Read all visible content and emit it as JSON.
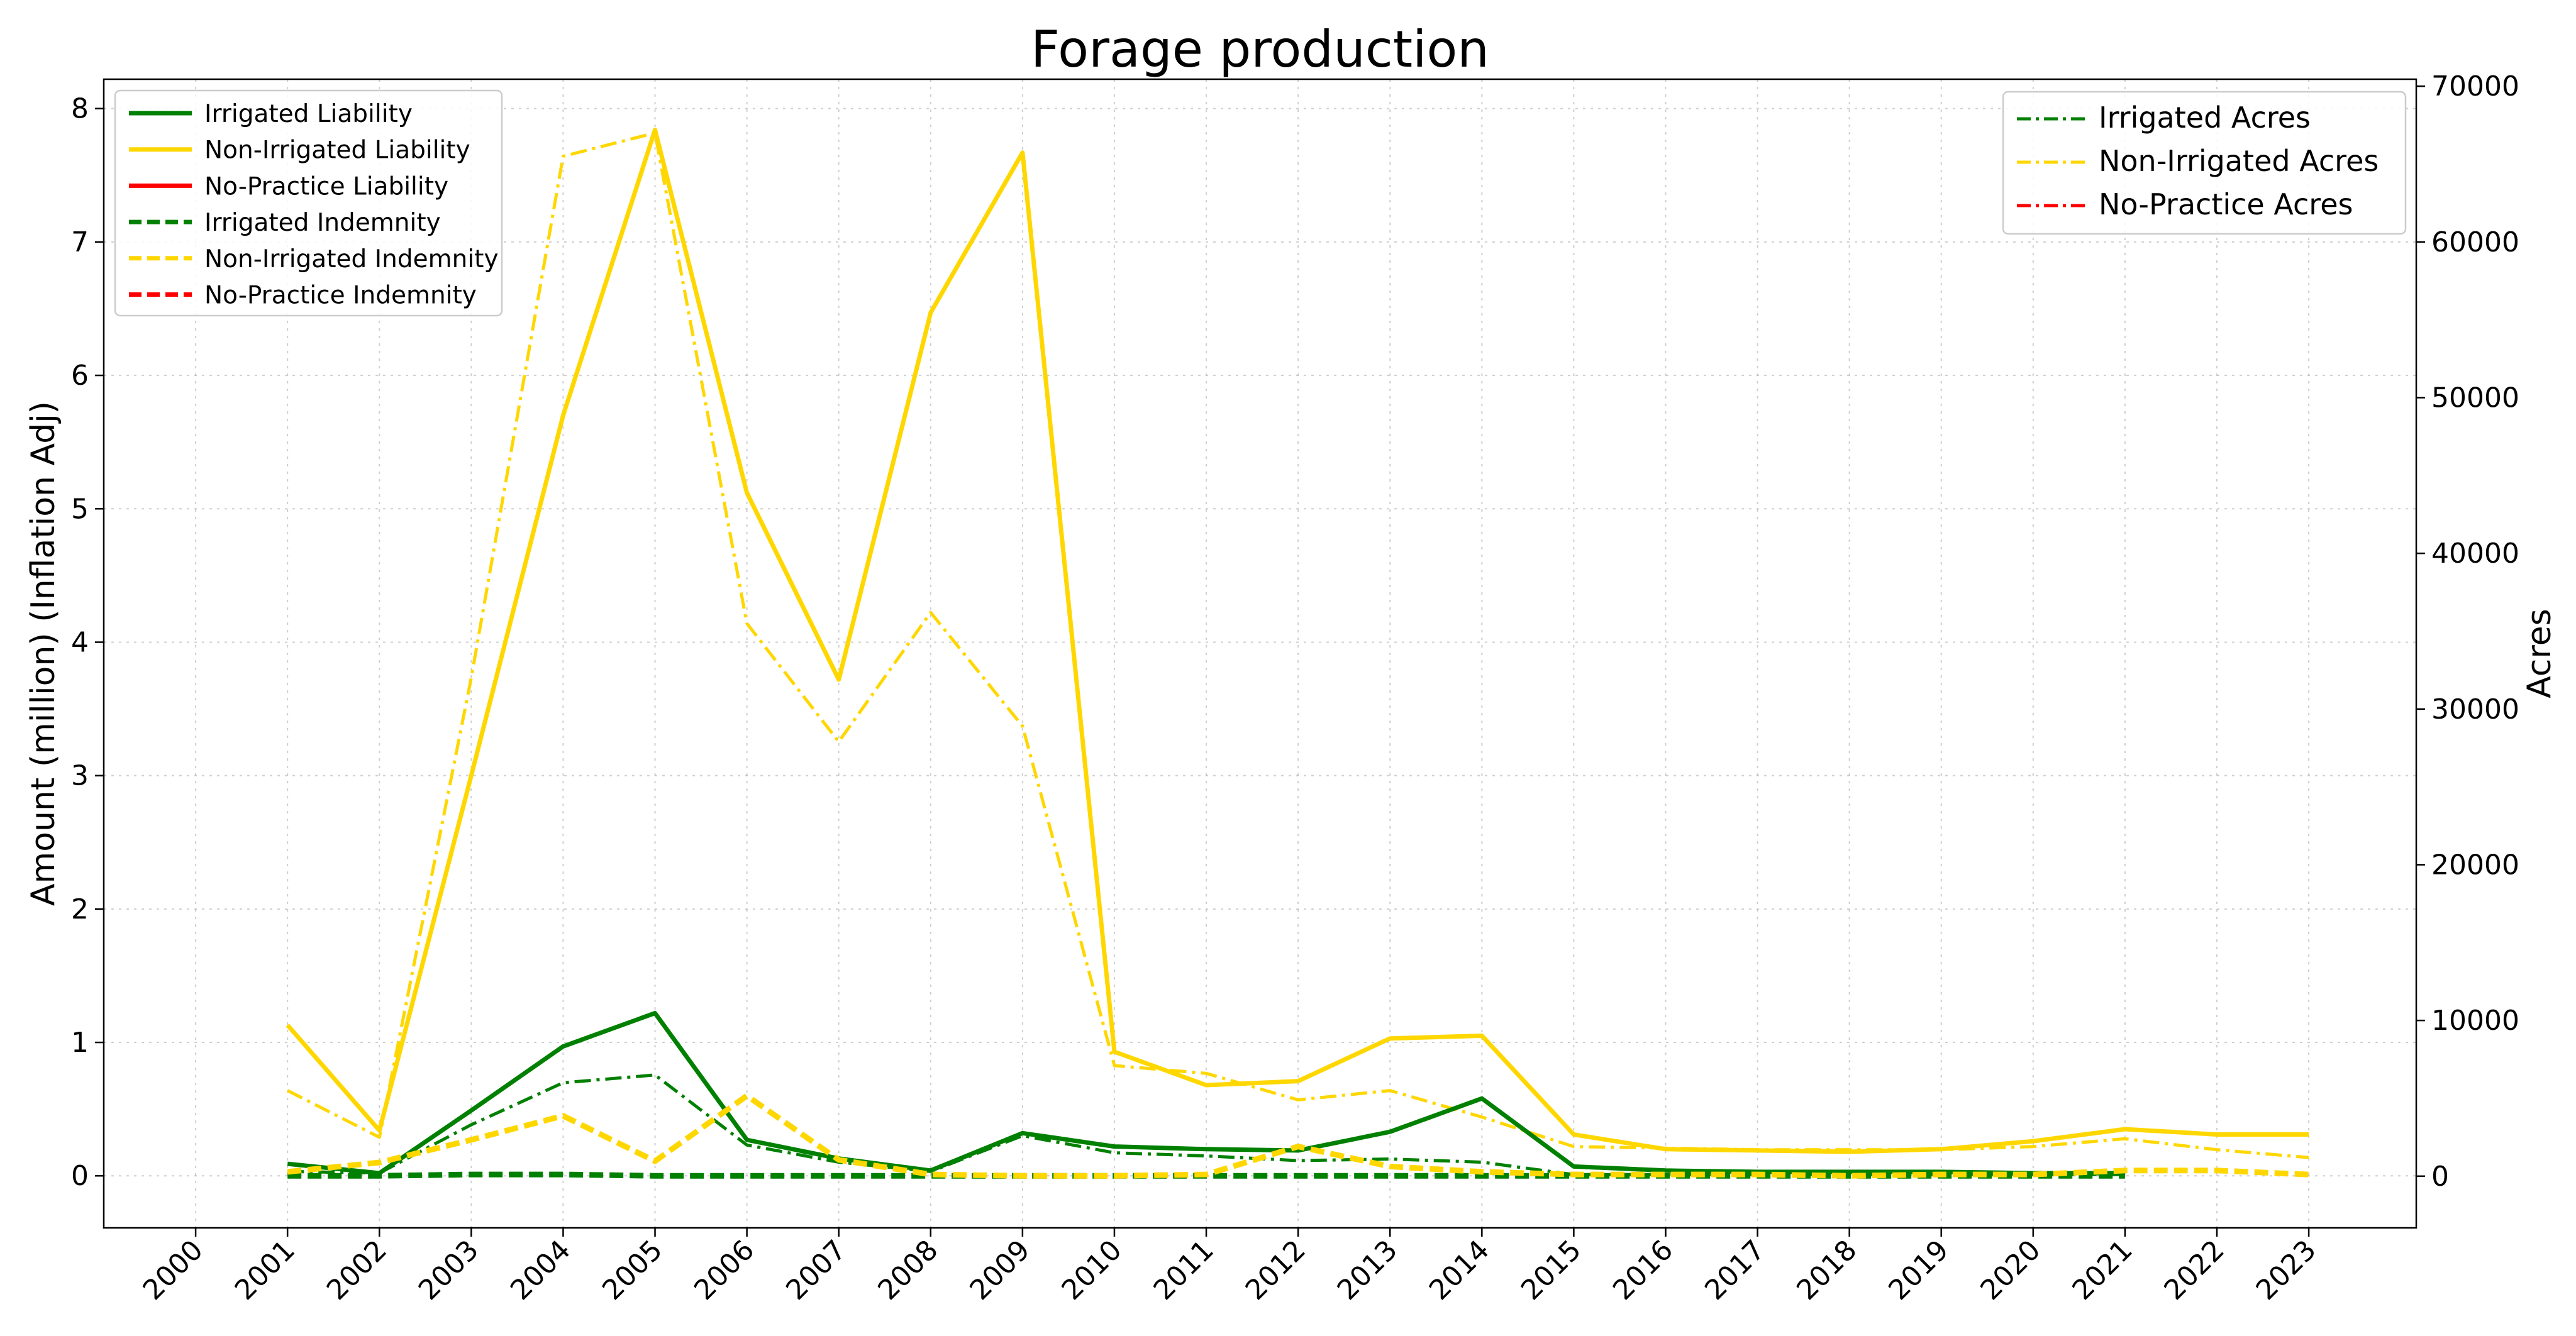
{
  "chart_data": {
    "type": "line",
    "title": "Forage production",
    "ylabel_left": "Amount (million) (Inflation Adj)",
    "ylabel_right": "Acres",
    "xlabel": "",
    "x_ticks": [
      "2000",
      "2001",
      "2002",
      "2003",
      "2004",
      "2005",
      "2006",
      "2007",
      "2008",
      "2009",
      "2010",
      "2011",
      "2012",
      "2013",
      "2014",
      "2015",
      "2016",
      "2017",
      "2018",
      "2019",
      "2020",
      "2021",
      "2022",
      "2023"
    ],
    "ylim_left": [
      -0.39,
      8.22
    ],
    "ylim_right": [
      -3320,
      70450
    ],
    "yticks_left": [
      0,
      1,
      2,
      3,
      4,
      5,
      6,
      7,
      8
    ],
    "yticks_right": [
      0,
      10000,
      20000,
      30000,
      40000,
      50000,
      60000,
      70000
    ],
    "grid": true,
    "legend_left_position": "upper-left",
    "legend_right_position": "upper-right",
    "colors": {
      "irrigated": "#008000",
      "non_irrigated": "#FFD700",
      "no_practice": "#FF0000"
    },
    "series_left": [
      {
        "name": "Irrigated Liability",
        "style": "solid",
        "color": "#008000",
        "x": [
          2001,
          2002,
          2003,
          2004,
          2005,
          2006,
          2007,
          2008,
          2009,
          2010,
          2011,
          2012,
          2013,
          2014,
          2015,
          2016,
          2017,
          2018,
          2019,
          2020,
          2021
        ],
        "values": [
          0.09,
          0.02,
          0.49,
          0.97,
          1.22,
          0.27,
          0.13,
          0.04,
          0.32,
          0.22,
          0.2,
          0.19,
          0.33,
          0.58,
          0.07,
          0.04,
          0.03,
          0.03,
          0.03,
          0.02,
          0.02
        ]
      },
      {
        "name": "Non-Irrigated Liability",
        "style": "solid",
        "color": "#FFD700",
        "x": [
          2001,
          2002,
          2003,
          2004,
          2005,
          2006,
          2007,
          2008,
          2009,
          2010,
          2011,
          2012,
          2013,
          2014,
          2015,
          2016,
          2017,
          2018,
          2019,
          2020,
          2021,
          2022,
          2023
        ],
        "values": [
          1.13,
          0.34,
          3.0,
          5.7,
          7.84,
          5.12,
          3.72,
          6.47,
          7.67,
          0.93,
          0.68,
          0.71,
          1.03,
          1.05,
          0.31,
          0.2,
          0.19,
          0.18,
          0.2,
          0.26,
          0.35,
          0.31,
          0.31
        ]
      },
      {
        "name": "No-Practice Liability",
        "style": "solid",
        "color": "#FF0000",
        "x": [],
        "values": []
      },
      {
        "name": "Irrigated Indemnity",
        "style": "dashed",
        "color": "#008000",
        "x": [
          2001,
          2002,
          2003,
          2004,
          2005,
          2006,
          2007,
          2008,
          2009,
          2010,
          2011,
          2012,
          2013,
          2014,
          2015,
          2016,
          2017,
          2018,
          2019,
          2020,
          2021
        ],
        "values": [
          0.0,
          0.0,
          0.01,
          0.01,
          0.0,
          0.0,
          0.0,
          0.0,
          0.0,
          0.0,
          0.0,
          0.0,
          0.0,
          0.0,
          0.0,
          0.0,
          0.0,
          0.0,
          0.0,
          0.0,
          0.0
        ]
      },
      {
        "name": "Non-Irrigated Indemnity",
        "style": "dashed",
        "color": "#FFD700",
        "x": [
          2001,
          2002,
          2003,
          2004,
          2005,
          2006,
          2007,
          2008,
          2009,
          2010,
          2011,
          2012,
          2013,
          2014,
          2015,
          2016,
          2017,
          2018,
          2019,
          2020,
          2021,
          2022,
          2023
        ],
        "values": [
          0.03,
          0.1,
          0.27,
          0.45,
          0.11,
          0.6,
          0.12,
          0.01,
          0.0,
          0.0,
          0.01,
          0.22,
          0.07,
          0.03,
          0.01,
          0.01,
          0.01,
          0.0,
          0.01,
          0.01,
          0.04,
          0.04,
          0.01
        ]
      },
      {
        "name": "No-Practice Indemnity",
        "style": "dashed",
        "color": "#FF0000",
        "x": [],
        "values": []
      }
    ],
    "series_right": [
      {
        "name": "Irrigated Acres",
        "style": "dashdot",
        "color": "#008000",
        "x": [
          2001,
          2002,
          2003,
          2004,
          2005,
          2006,
          2007,
          2008,
          2009,
          2010,
          2011,
          2012,
          2013,
          2014,
          2015,
          2016,
          2017,
          2018,
          2019,
          2020,
          2021
        ],
        "values": [
          300,
          200,
          3300,
          6000,
          6500,
          2000,
          900,
          300,
          2600,
          1500,
          1300,
          1000,
          1100,
          900,
          100,
          100,
          100,
          100,
          100,
          100,
          100
        ]
      },
      {
        "name": "Non-Irrigated Acres",
        "style": "dashdot",
        "color": "#FFD700",
        "x": [
          2001,
          2002,
          2003,
          2004,
          2005,
          2006,
          2007,
          2008,
          2009,
          2010,
          2011,
          2012,
          2013,
          2014,
          2015,
          2016,
          2017,
          2018,
          2019,
          2020,
          2021,
          2022,
          2023
        ],
        "values": [
          5500,
          2500,
          32000,
          65500,
          67000,
          35500,
          27900,
          36200,
          28900,
          7100,
          6600,
          4900,
          5500,
          3800,
          1900,
          1800,
          1700,
          1700,
          1700,
          1900,
          2400,
          1700,
          1200
        ]
      },
      {
        "name": "No-Practice Acres",
        "style": "dashdot",
        "color": "#FF0000",
        "x": [],
        "values": []
      }
    ]
  }
}
